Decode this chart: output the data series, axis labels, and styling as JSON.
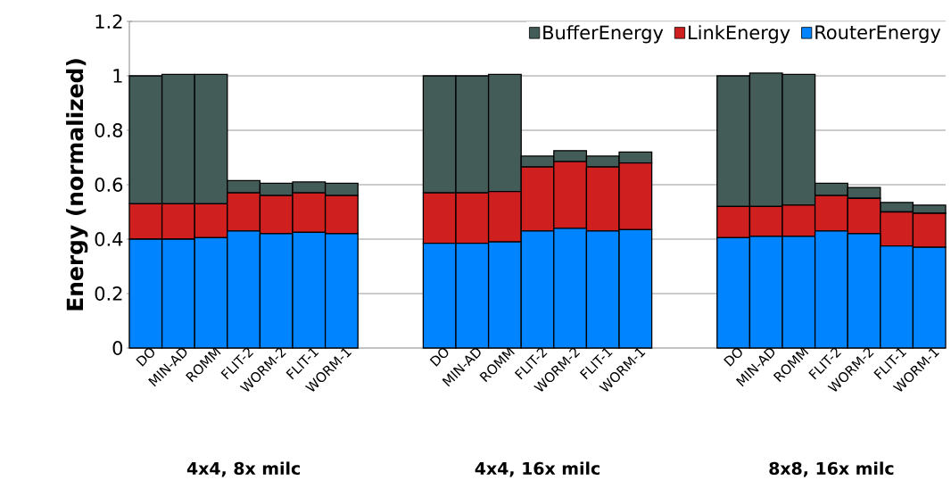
{
  "chart_data": {
    "type": "bar",
    "stacked": true,
    "ylabel": "Energy (normalized)",
    "categories": [
      "DO",
      "MIN-AD",
      "ROMM",
      "FLIT-2",
      "WORM-2",
      "FLIT-1",
      "WORM-1",
      null,
      null,
      "DO",
      "MIN-AD",
      "ROMM",
      "FLIT-2",
      "WORM-2",
      "FLIT-1",
      "WORM-1",
      null,
      null,
      "DO",
      "MIN-AD",
      "ROMM",
      "FLIT-2",
      "WORM-2",
      "FLIT-1",
      "WORM-1"
    ],
    "series": [
      {
        "name": "RouterEnergy",
        "color": "#0084ff",
        "values": [
          0.4,
          0.4,
          0.405,
          0.43,
          0.42,
          0.425,
          0.42,
          null,
          null,
          0.385,
          0.385,
          0.39,
          0.43,
          0.44,
          0.43,
          0.435,
          null,
          null,
          0.405,
          0.41,
          0.41,
          0.43,
          0.42,
          0.375,
          0.37
        ]
      },
      {
        "name": "LinkEnergy",
        "color": "#d01f1f",
        "values": [
          0.13,
          0.13,
          0.125,
          0.14,
          0.14,
          0.145,
          0.14,
          null,
          null,
          0.185,
          0.185,
          0.185,
          0.235,
          0.245,
          0.235,
          0.245,
          null,
          null,
          0.115,
          0.11,
          0.115,
          0.13,
          0.13,
          0.125,
          0.125
        ]
      },
      {
        "name": "BufferEnergy",
        "color": "#445c58",
        "values": [
          0.47,
          0.475,
          0.475,
          0.045,
          0.045,
          0.04,
          0.045,
          null,
          null,
          0.43,
          0.43,
          0.43,
          0.04,
          0.04,
          0.04,
          0.04,
          null,
          null,
          0.48,
          0.49,
          0.48,
          0.045,
          0.04,
          0.035,
          0.03
        ]
      }
    ],
    "ylim": [
      0,
      1.2
    ],
    "yticks": [
      0,
      0.2,
      0.4,
      0.6,
      0.8,
      1,
      1.2
    ],
    "grid": "y",
    "legend": "top right",
    "annotations": [
      "4x4, 8x milc",
      "4x4, 16x milc",
      "8x8, 16x milc"
    ]
  }
}
